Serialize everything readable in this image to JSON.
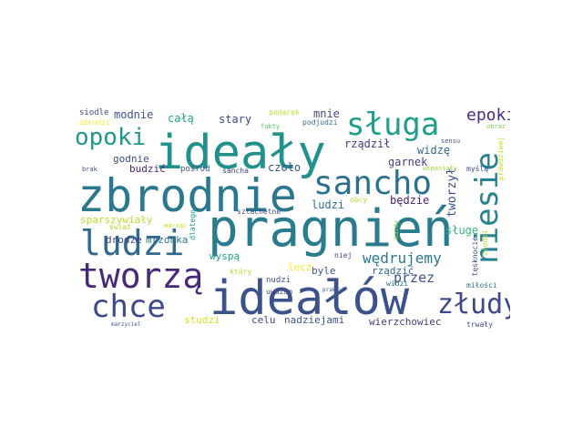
{
  "words": [
    {
      "id": "idealy",
      "text": "ideały",
      "color": "#21918c"
    },
    {
      "id": "zbrodnie",
      "text": "zbrodnie",
      "color": "#2a788e"
    },
    {
      "id": "pragnien",
      "text": "pragnień",
      "color": "#287c8e"
    },
    {
      "id": "idealow",
      "text": "ideałów",
      "color": "#3b528b"
    },
    {
      "id": "sluga",
      "text": "sługa",
      "color": "#1f9e89"
    },
    {
      "id": "sancho",
      "text": "sancho",
      "color": "#2c728e"
    },
    {
      "id": "niesie",
      "text": "niesie",
      "color": "#26828e"
    },
    {
      "id": "ludzi",
      "text": "ludzi",
      "color": "#31688e"
    },
    {
      "id": "tworza",
      "text": "tworzą",
      "color": "#482878"
    },
    {
      "id": "chce",
      "text": "chce",
      "color": "#3e4a89"
    },
    {
      "id": "zludy",
      "text": "złudy",
      "color": "#3e4989"
    },
    {
      "id": "opoki",
      "text": "opoki",
      "color": "#1f9a8a"
    },
    {
      "id": "epoki",
      "text": "epoki",
      "color": "#472d7b"
    },
    {
      "id": "wedrujemy",
      "text": "wędrujemy",
      "color": "#2a788e"
    },
    {
      "id": "przez",
      "text": "przez",
      "color": "#3a548c"
    },
    {
      "id": "tworzyl",
      "text": "tworzył",
      "color": "#3b528b"
    },
    {
      "id": "sluge",
      "text": "sługę",
      "color": "#35b779"
    },
    {
      "id": "rzadzil",
      "text": "rządził",
      "color": "#443983"
    },
    {
      "id": "mnie",
      "text": "mnie",
      "color": "#3f4788"
    },
    {
      "id": "garnek",
      "text": "garnek",
      "color": "#433e85"
    },
    {
      "id": "widze",
      "text": "widzę",
      "color": "#31688e"
    },
    {
      "id": "bedzie",
      "text": "będzie",
      "color": "#481f70"
    },
    {
      "id": "ludzi2",
      "text": "ludzi",
      "color": "#2d708e"
    },
    {
      "id": "czolo",
      "text": "czoło",
      "color": "#3b528b"
    },
    {
      "id": "stary",
      "text": "stary",
      "color": "#414487"
    },
    {
      "id": "cala",
      "text": "całą",
      "color": "#21a585"
    },
    {
      "id": "modnie",
      "text": "modnie",
      "color": "#3b528b"
    },
    {
      "id": "godnie",
      "text": "godnie",
      "color": "#3e4989"
    },
    {
      "id": "budzic",
      "text": "budzić",
      "color": "#482475"
    },
    {
      "id": "sparszywialy",
      "text": "sparszywiały",
      "color": "#b5de2b"
    },
    {
      "id": "drodze",
      "text": "drodze",
      "color": "#3f4788"
    },
    {
      "id": "mrzonka",
      "text": "mrzonka",
      "color": "#2a788e"
    },
    {
      "id": "wyspa",
      "text": "wyspą",
      "color": "#20a386"
    },
    {
      "id": "lecz",
      "text": "lecz",
      "color": "#fde725"
    },
    {
      "id": "byle",
      "text": "byle",
      "color": "#3b528b"
    },
    {
      "id": "rzadzic",
      "text": "rządzić",
      "color": "#31688e"
    },
    {
      "id": "studzi",
      "text": "studzi",
      "color": "#d8e219"
    },
    {
      "id": "celu",
      "text": "celu",
      "color": "#3e4989"
    },
    {
      "id": "nadziejami",
      "text": "nadziejami",
      "color": "#3b528b"
    },
    {
      "id": "wierzchowiec",
      "text": "wierzchowiec",
      "color": "#443a83"
    },
    {
      "id": "siodle",
      "text": "siodle",
      "color": "#3e4a89"
    },
    {
      "id": "zbrudzi",
      "text": "zbrudzi",
      "color": "#fde725"
    },
    {
      "id": "podarek",
      "text": "podarek",
      "color": "#b8de29"
    },
    {
      "id": "fakty",
      "text": "fakty",
      "color": "#5ec962"
    },
    {
      "id": "podjudzi",
      "text": "podjudzi",
      "color": "#31688e"
    },
    {
      "id": "sensu",
      "text": "sensu",
      "color": "#3b528b"
    },
    {
      "id": "obraz",
      "text": "obraz",
      "color": "#7ad151"
    },
    {
      "id": "prawdziwej",
      "text": "prawdziwej",
      "color": "#c2df23"
    },
    {
      "id": "brak",
      "text": "brak",
      "color": "#3e4989"
    },
    {
      "id": "posrod",
      "text": "pośród",
      "color": "#3b528b"
    },
    {
      "id": "sancha",
      "text": "sancha",
      "color": "#414487"
    },
    {
      "id": "wspanialy",
      "text": "wspaniały",
      "color": "#a0da39"
    },
    {
      "id": "mysla",
      "text": "myślą",
      "color": "#3e4a89"
    },
    {
      "id": "obcy",
      "text": "obcy",
      "color": "#addc30"
    },
    {
      "id": "szlachetne",
      "text": "szlachetne",
      "color": "#3e4a89"
    },
    {
      "id": "marzac",
      "text": "marząc",
      "color": "#c8e020"
    },
    {
      "id": "dlatego",
      "text": "dlatego",
      "color": "#1f9a8a"
    },
    {
      "id": "swiat",
      "text": "świat",
      "color": "#addc30"
    },
    {
      "id": "ktory",
      "text": "który",
      "color": "#b5de2b"
    },
    {
      "id": "nudzi",
      "text": "nudzi",
      "color": "#3b528b"
    },
    {
      "id": "uwazam",
      "text": "uważam",
      "color": "#3e4989"
    },
    {
      "id": "niej",
      "text": "niej",
      "color": "#3e4a89"
    },
    {
      "id": "widzi",
      "text": "widzi",
      "color": "#2d708e"
    },
    {
      "id": "praktyk",
      "text": "praktyk",
      "color": "#3b528b"
    },
    {
      "id": "kazdy",
      "text": "każdy",
      "color": "#90d743"
    },
    {
      "id": "tesknocie",
      "text": "tęsknocie",
      "color": "#3e4989"
    },
    {
      "id": "zrodzi",
      "text": "zrodzi",
      "color": "#b5de2b"
    },
    {
      "id": "milosci",
      "text": "miłości",
      "color": "#2c728e"
    },
    {
      "id": "marzyciel",
      "text": "marzyciel",
      "color": "#3b528b"
    },
    {
      "id": "trwaly",
      "text": "trwały",
      "color": "#3e4989"
    }
  ]
}
